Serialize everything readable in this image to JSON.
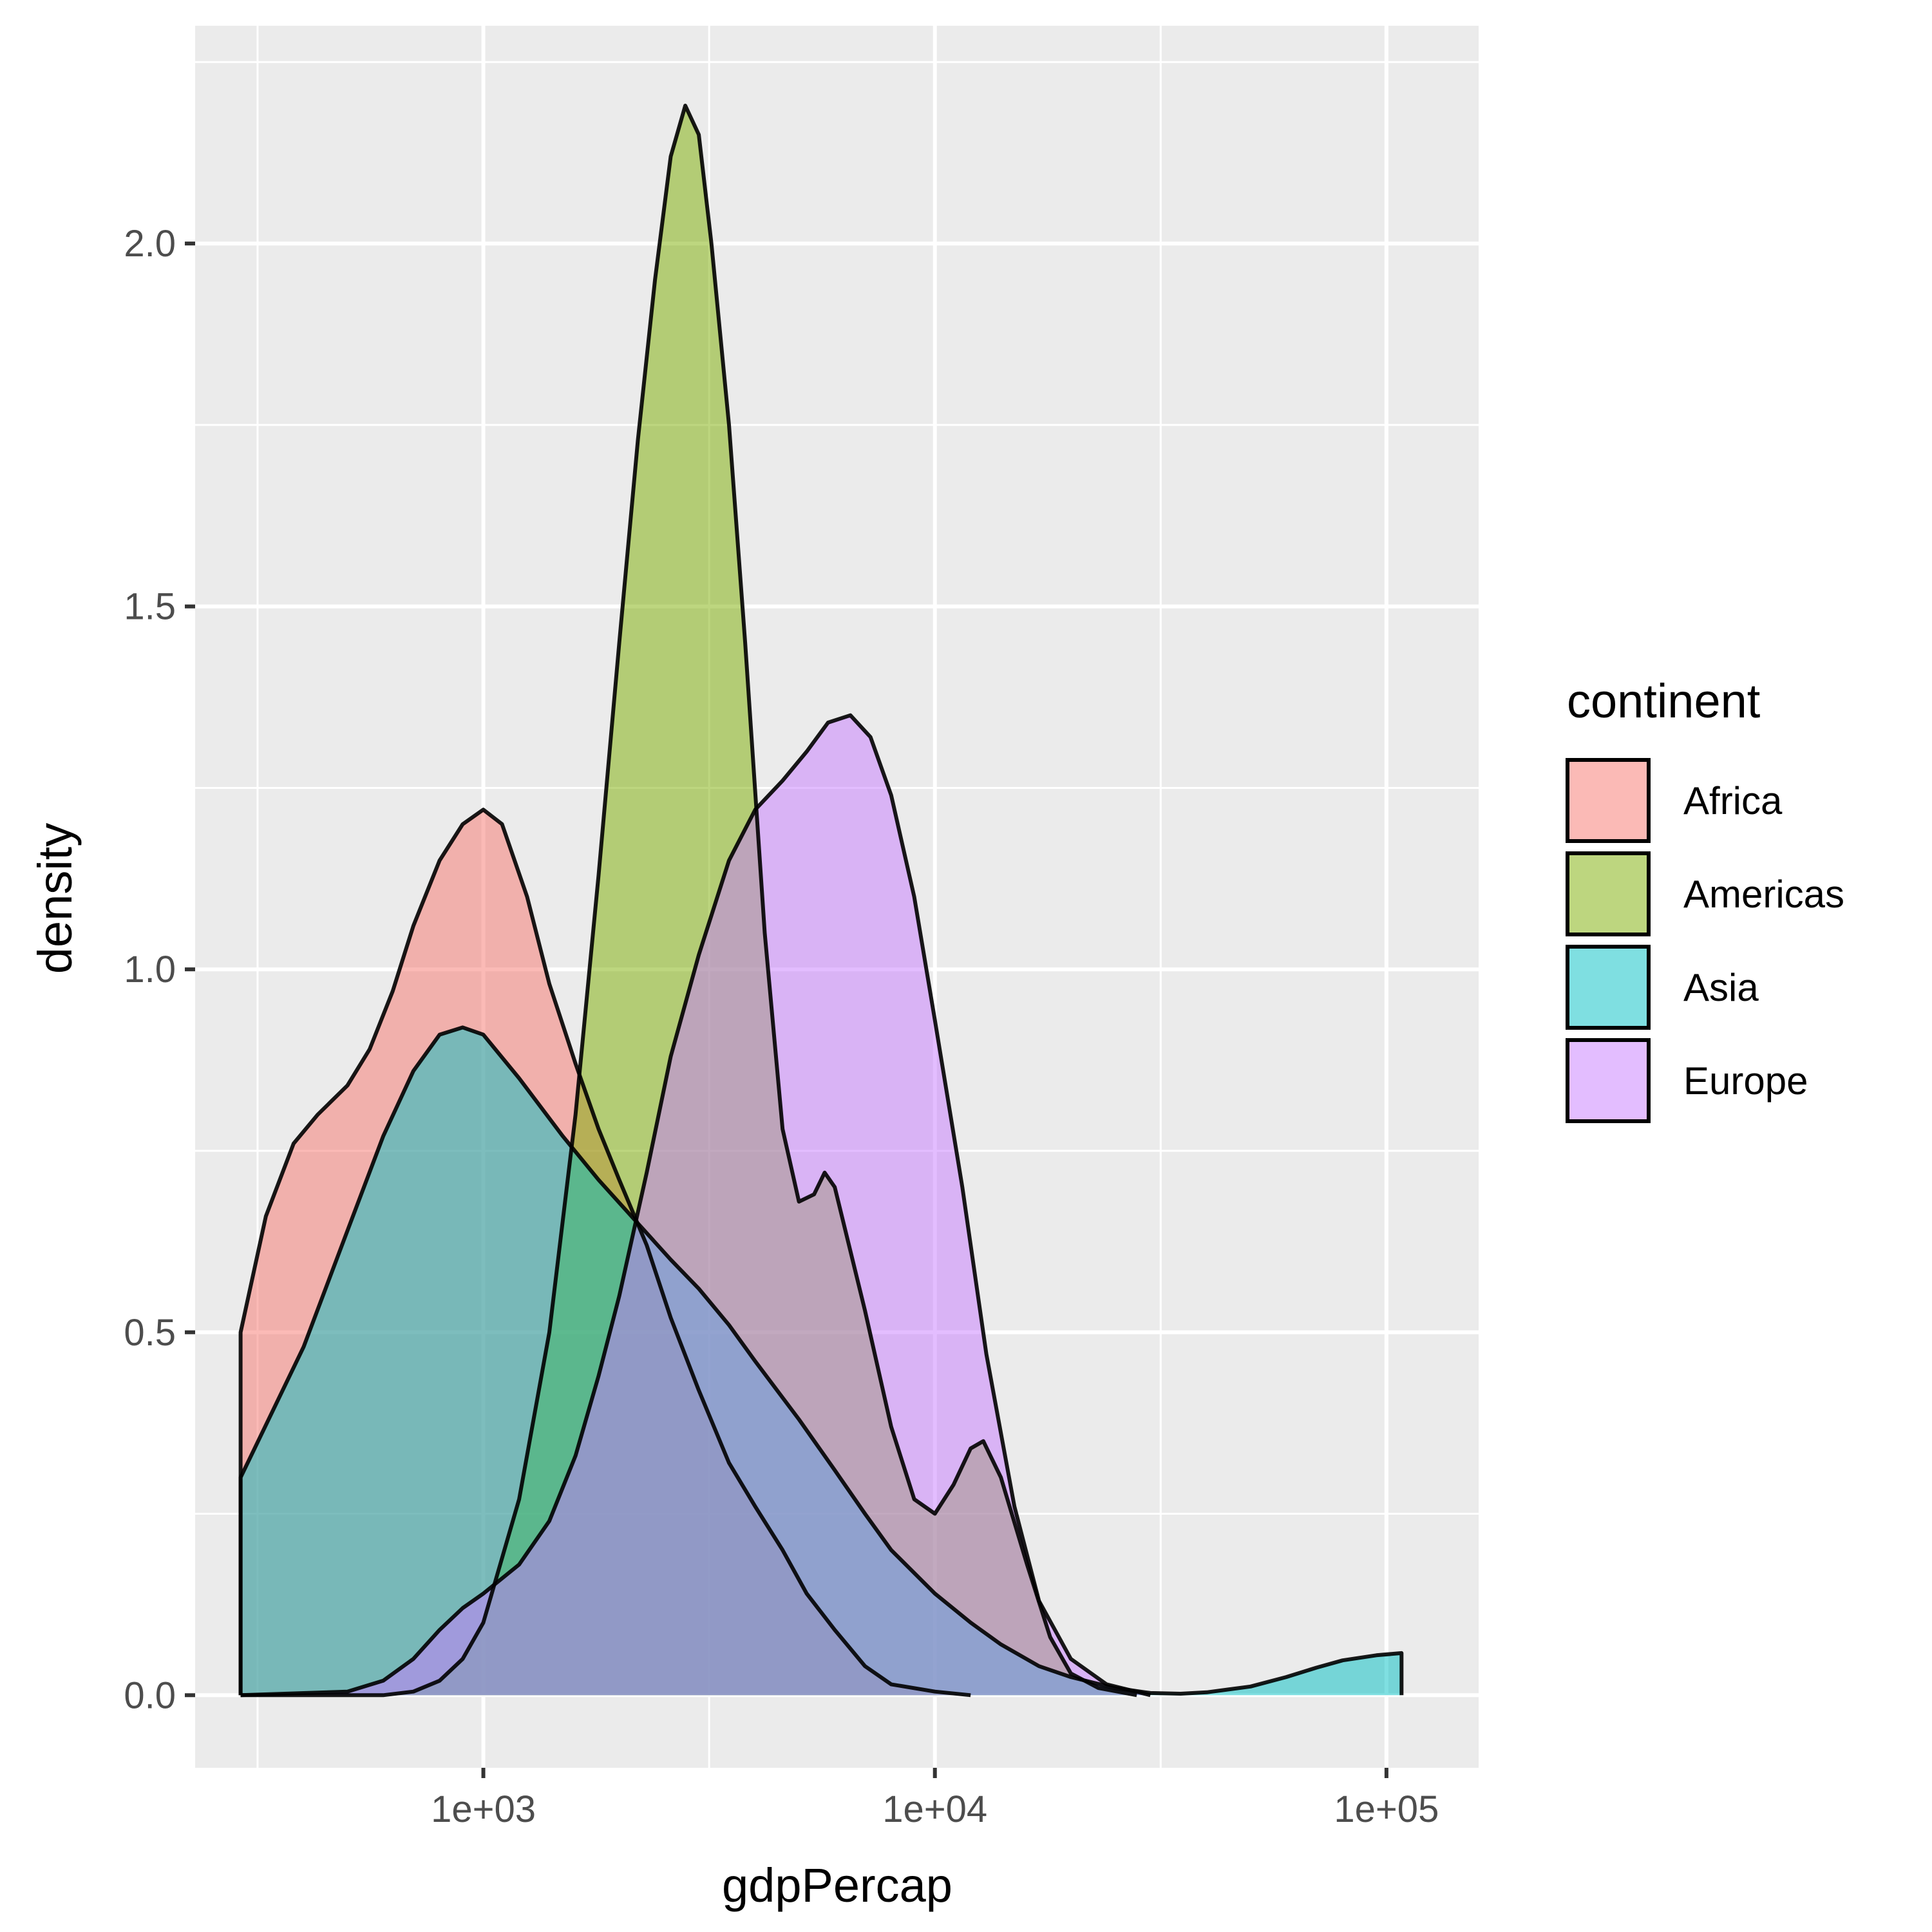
{
  "chart_data": {
    "type": "area",
    "subtype": "density",
    "xlabel": "gdpPercap",
    "ylabel": "density",
    "x_scale": "log10",
    "x_ticks": [
      1000,
      10000,
      100000
    ],
    "x_tick_labels": [
      "1e+03",
      "1e+04",
      "1e+05"
    ],
    "y_ticks": [
      0,
      0.5,
      1,
      1.5,
      2
    ],
    "y_tick_labels": [
      "0.0",
      "0.5",
      "1.0",
      "1.5",
      "2.0"
    ],
    "xlim": [
      230,
      160000
    ],
    "ylim": [
      -0.1,
      2.3
    ],
    "grid": true,
    "legend": {
      "title": "continent",
      "position": "right"
    },
    "colors": {
      "panel": "#ebebeb",
      "grid": "#ffffff",
      "outline": "#000000"
    },
    "fill_opacity": 0.5,
    "series": [
      {
        "name": "Africa",
        "color": "#F8766D",
        "points": [
          [
            290,
            0.5
          ],
          [
            330,
            0.66
          ],
          [
            380,
            0.76
          ],
          [
            430,
            0.8
          ],
          [
            500,
            0.84
          ],
          [
            560,
            0.89
          ],
          [
            630,
            0.97
          ],
          [
            700,
            1.06
          ],
          [
            800,
            1.15
          ],
          [
            900,
            1.2
          ],
          [
            1000,
            1.22
          ],
          [
            1100,
            1.2
          ],
          [
            1250,
            1.1
          ],
          [
            1400,
            0.98
          ],
          [
            1600,
            0.87
          ],
          [
            1800,
            0.78
          ],
          [
            2000,
            0.71
          ],
          [
            2300,
            0.62
          ],
          [
            2600,
            0.52
          ],
          [
            3000,
            0.42
          ],
          [
            3500,
            0.32
          ],
          [
            4000,
            0.26
          ],
          [
            4600,
            0.2
          ],
          [
            5200,
            0.14
          ],
          [
            6000,
            0.09
          ],
          [
            7000,
            0.04
          ],
          [
            8000,
            0.015
          ],
          [
            10000,
            0.005
          ],
          [
            12000,
            0.0
          ]
        ]
      },
      {
        "name": "Americas",
        "color": "#7CAE00",
        "points": [
          [
            290,
            0.0
          ],
          [
            600,
            0.0
          ],
          [
            700,
            0.005
          ],
          [
            800,
            0.02
          ],
          [
            900,
            0.05
          ],
          [
            1000,
            0.1
          ],
          [
            1200,
            0.27
          ],
          [
            1400,
            0.5
          ],
          [
            1600,
            0.8
          ],
          [
            1800,
            1.13
          ],
          [
            2000,
            1.45
          ],
          [
            2200,
            1.73
          ],
          [
            2400,
            1.95
          ],
          [
            2600,
            2.12
          ],
          [
            2800,
            2.19
          ],
          [
            3000,
            2.15
          ],
          [
            3200,
            2.0
          ],
          [
            3500,
            1.75
          ],
          [
            3800,
            1.45
          ],
          [
            4200,
            1.05
          ],
          [
            4600,
            0.78
          ],
          [
            5000,
            0.68
          ],
          [
            5400,
            0.69
          ],
          [
            5700,
            0.72
          ],
          [
            6000,
            0.7
          ],
          [
            7000,
            0.53
          ],
          [
            8000,
            0.37
          ],
          [
            9000,
            0.27
          ],
          [
            10000,
            0.25
          ],
          [
            11000,
            0.29
          ],
          [
            12000,
            0.34
          ],
          [
            12800,
            0.35
          ],
          [
            14000,
            0.3
          ],
          [
            16000,
            0.18
          ],
          [
            18000,
            0.08
          ],
          [
            20000,
            0.03
          ],
          [
            23000,
            0.01
          ],
          [
            28000,
            0.0
          ]
        ]
      },
      {
        "name": "Asia",
        "color": "#00BFC4",
        "points": [
          [
            290,
            0.3
          ],
          [
            400,
            0.48
          ],
          [
            500,
            0.64
          ],
          [
            600,
            0.77
          ],
          [
            700,
            0.86
          ],
          [
            800,
            0.91
          ],
          [
            900,
            0.92
          ],
          [
            1000,
            0.91
          ],
          [
            1200,
            0.85
          ],
          [
            1500,
            0.77
          ],
          [
            1800,
            0.71
          ],
          [
            2200,
            0.65
          ],
          [
            2600,
            0.6
          ],
          [
            3000,
            0.56
          ],
          [
            3500,
            0.51
          ],
          [
            4000,
            0.46
          ],
          [
            5000,
            0.38
          ],
          [
            6000,
            0.31
          ],
          [
            7000,
            0.25
          ],
          [
            8000,
            0.2
          ],
          [
            10000,
            0.14
          ],
          [
            12000,
            0.1
          ],
          [
            14000,
            0.07
          ],
          [
            17000,
            0.04
          ],
          [
            20000,
            0.025
          ],
          [
            25000,
            0.01
          ],
          [
            30000,
            0.003
          ],
          [
            35000,
            0.002
          ],
          [
            40000,
            0.004
          ],
          [
            50000,
            0.012
          ],
          [
            60000,
            0.025
          ],
          [
            70000,
            0.038
          ],
          [
            80000,
            0.048
          ],
          [
            95000,
            0.055
          ],
          [
            108000,
            0.058
          ]
        ]
      },
      {
        "name": "Europe",
        "color": "#C77CFF",
        "points": [
          [
            290,
            0.0
          ],
          [
            500,
            0.005
          ],
          [
            600,
            0.02
          ],
          [
            700,
            0.05
          ],
          [
            800,
            0.09
          ],
          [
            900,
            0.12
          ],
          [
            1000,
            0.14
          ],
          [
            1200,
            0.18
          ],
          [
            1400,
            0.24
          ],
          [
            1600,
            0.33
          ],
          [
            1800,
            0.44
          ],
          [
            2000,
            0.55
          ],
          [
            2300,
            0.72
          ],
          [
            2600,
            0.88
          ],
          [
            3000,
            1.02
          ],
          [
            3500,
            1.15
          ],
          [
            4000,
            1.22
          ],
          [
            4600,
            1.26
          ],
          [
            5200,
            1.3
          ],
          [
            5800,
            1.34
          ],
          [
            6500,
            1.35
          ],
          [
            7200,
            1.32
          ],
          [
            8000,
            1.24
          ],
          [
            9000,
            1.1
          ],
          [
            10000,
            0.93
          ],
          [
            11500,
            0.7
          ],
          [
            13000,
            0.47
          ],
          [
            15000,
            0.26
          ],
          [
            17000,
            0.13
          ],
          [
            20000,
            0.05
          ],
          [
            24000,
            0.015
          ],
          [
            30000,
            0.0
          ]
        ]
      }
    ]
  }
}
